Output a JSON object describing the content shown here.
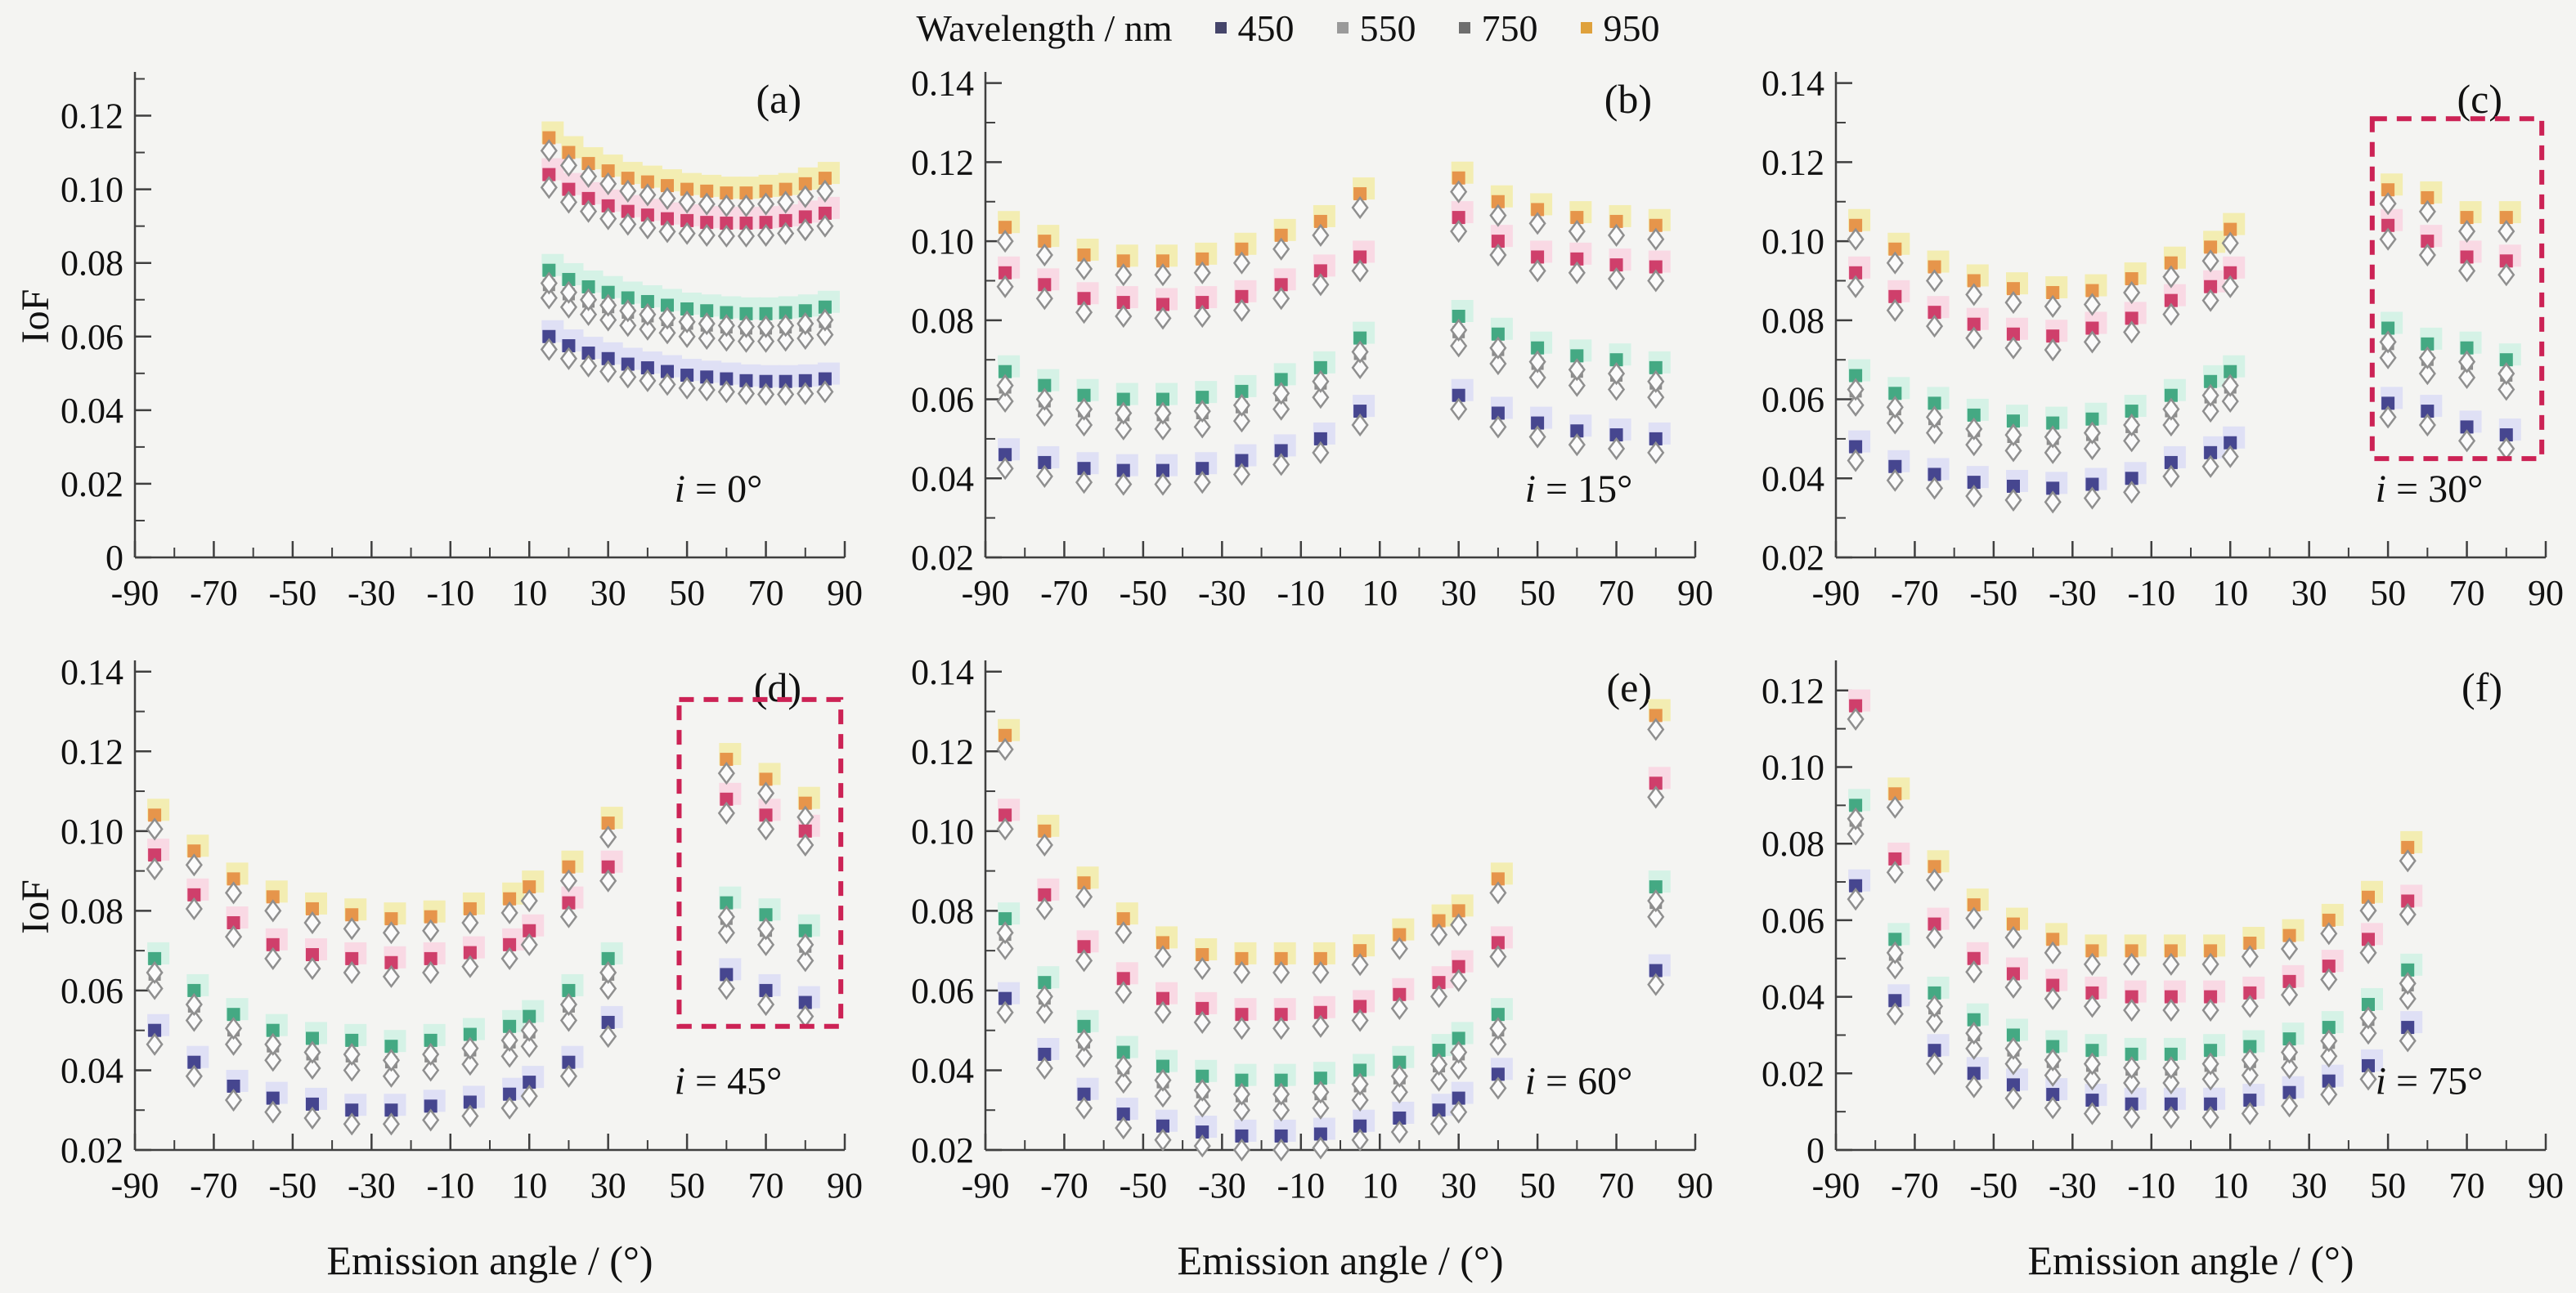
{
  "legend": {
    "title": "Wavelength / nm",
    "items": [
      {
        "label": "450",
        "color": "#45456a"
      },
      {
        "label": "550",
        "color": "#9a9a9a"
      },
      {
        "label": "750",
        "color": "#6e6e6e"
      },
      {
        "label": "950",
        "color": "#dfa13c"
      }
    ]
  },
  "styles": {
    "series": {
      "450": {
        "square": "#46468f",
        "halo": "#dfe0f5"
      },
      "550": {
        "square": "#44a983",
        "halo": "#d5f2e6"
      },
      "750": {
        "square": "#cf3f6b",
        "halo": "#f9d9e4"
      },
      "950": {
        "square": "#e6954b",
        "halo": "#f3edb2"
      }
    },
    "gray_square": "#8c8c8c",
    "diamond": {
      "fill": "#fbfbfb",
      "stroke": "#8f8f8f"
    },
    "box_color": "#cc2255",
    "axis_color": "#3f3f3f",
    "derived": {
      "gray_from": "550",
      "gray_offset": -0.004,
      "diamond_offset": -0.0035
    }
  },
  "chart_data": {
    "type": "scatter",
    "xlabel": "Emission angle / (°)",
    "ylabel": "IoF",
    "wavelengths_nm": [
      450,
      550,
      750,
      950
    ],
    "incidence_angles_deg": [
      0,
      15,
      30,
      45,
      60,
      75
    ],
    "markers": {
      "square": "filled square colored by wavelength",
      "diamond": "open gray-outlined diamond plotted slightly below each square",
      "gray_square": "unlabeled gray square series just below the 550 nm series",
      "halo": "pale tinted square behind each data point"
    },
    "xlim": [
      -90,
      90
    ],
    "xticks": [
      -90,
      -70,
      -50,
      -30,
      -10,
      10,
      30,
      50,
      70,
      90
    ],
    "xtick_labels": [
      "-90",
      "-70",
      "-50",
      "-30",
      "-10",
      "10",
      "30",
      "50",
      "70",
      "90"
    ],
    "panels": [
      {
        "id": "a",
        "label": "(a)",
        "annotation": {
          "symbol": "i",
          "rest": " = 0°"
        },
        "show_ylabel": true,
        "show_xlabel": false,
        "ylim": [
          0,
          0.131
        ],
        "yticks": [
          0,
          0.02,
          0.04,
          0.06,
          0.08,
          0.1,
          0.12
        ],
        "ytick_labels": [
          "0",
          "0.02",
          "0.04",
          "0.06",
          "0.08",
          "0.10",
          "0.12"
        ],
        "x": [
          15,
          20,
          25,
          30,
          35,
          40,
          45,
          50,
          55,
          60,
          65,
          70,
          75,
          80,
          85
        ],
        "series": {
          "950": [
            0.114,
            0.11,
            0.107,
            0.105,
            0.103,
            0.102,
            0.101,
            0.1,
            0.0995,
            0.099,
            0.099,
            0.0995,
            0.1,
            0.1015,
            0.103
          ],
          "750": [
            0.104,
            0.1,
            0.0975,
            0.0955,
            0.094,
            0.093,
            0.092,
            0.0915,
            0.091,
            0.0908,
            0.0908,
            0.091,
            0.0915,
            0.0925,
            0.0935
          ],
          "550": [
            0.078,
            0.0755,
            0.0735,
            0.072,
            0.0705,
            0.0695,
            0.0685,
            0.0675,
            0.067,
            0.0665,
            0.0662,
            0.0662,
            0.0665,
            0.067,
            0.068
          ],
          "450": [
            0.06,
            0.0575,
            0.0555,
            0.054,
            0.0525,
            0.0515,
            0.0505,
            0.0495,
            0.049,
            0.0485,
            0.048,
            0.0478,
            0.0478,
            0.048,
            0.0485
          ]
        },
        "box": null
      },
      {
        "id": "b",
        "label": "(b)",
        "annotation": {
          "symbol": "i",
          "rest": " = 15°"
        },
        "show_ylabel": false,
        "show_xlabel": false,
        "ylim": [
          0.02,
          0.142
        ],
        "yticks": [
          0.02,
          0.04,
          0.06,
          0.08,
          0.1,
          0.12,
          0.14
        ],
        "ytick_labels": [
          "0.02",
          "0.04",
          "0.06",
          "0.08",
          "0.10",
          "0.12",
          "0.14"
        ],
        "x": [
          -85,
          -75,
          -65,
          -55,
          -45,
          -35,
          -25,
          -15,
          -5,
          5,
          30,
          40,
          50,
          60,
          70,
          80
        ],
        "series": {
          "950": [
            0.1035,
            0.1,
            0.0965,
            0.095,
            0.095,
            0.0955,
            0.098,
            0.1015,
            0.105,
            0.112,
            0.116,
            0.11,
            0.108,
            0.106,
            0.105,
            0.104
          ],
          "750": [
            0.092,
            0.089,
            0.0855,
            0.0845,
            0.084,
            0.0845,
            0.086,
            0.089,
            0.0925,
            0.096,
            0.106,
            0.1,
            0.096,
            0.0955,
            0.094,
            0.0935
          ],
          "550": [
            0.067,
            0.0635,
            0.061,
            0.06,
            0.06,
            0.0605,
            0.062,
            0.065,
            0.068,
            0.0755,
            0.081,
            0.0765,
            0.073,
            0.071,
            0.07,
            0.068
          ],
          "450": [
            0.046,
            0.044,
            0.0425,
            0.042,
            0.042,
            0.0425,
            0.0445,
            0.047,
            0.05,
            0.057,
            0.061,
            0.0565,
            0.054,
            0.052,
            0.051,
            0.05
          ]
        },
        "box": null
      },
      {
        "id": "c",
        "label": "(c)",
        "annotation": {
          "symbol": "i",
          "rest": " = 30°"
        },
        "show_ylabel": false,
        "show_xlabel": false,
        "ylim": [
          0.02,
          0.142
        ],
        "yticks": [
          0.02,
          0.04,
          0.06,
          0.08,
          0.1,
          0.12,
          0.14
        ],
        "ytick_labels": [
          "0.02",
          "0.04",
          "0.06",
          "0.08",
          "0.10",
          "0.12",
          "0.14"
        ],
        "x": [
          -85,
          -75,
          -65,
          -55,
          -45,
          -35,
          -25,
          -15,
          -5,
          5,
          10,
          50,
          60,
          70,
          80
        ],
        "series": {
          "950": [
            0.104,
            0.098,
            0.0935,
            0.09,
            0.088,
            0.087,
            0.0875,
            0.0905,
            0.0945,
            0.0985,
            0.103,
            0.113,
            0.111,
            0.106,
            0.106
          ],
          "750": [
            0.092,
            0.086,
            0.082,
            0.079,
            0.0765,
            0.076,
            0.078,
            0.0805,
            0.085,
            0.0885,
            0.092,
            0.104,
            0.1,
            0.096,
            0.095
          ],
          "550": [
            0.066,
            0.0615,
            0.059,
            0.056,
            0.0545,
            0.054,
            0.055,
            0.057,
            0.061,
            0.0645,
            0.067,
            0.078,
            0.074,
            0.073,
            0.07
          ],
          "450": [
            0.048,
            0.043,
            0.041,
            0.039,
            0.038,
            0.0375,
            0.0385,
            0.04,
            0.044,
            0.0465,
            0.049,
            0.059,
            0.057,
            0.053,
            0.051
          ]
        },
        "box": {
          "x": [
            46,
            89
          ],
          "y": [
            0.045,
            0.131
          ]
        }
      },
      {
        "id": "d",
        "label": "(d)",
        "annotation": {
          "symbol": "i",
          "rest": " = 45°"
        },
        "show_ylabel": true,
        "show_xlabel": true,
        "ylim": [
          0.02,
          0.142
        ],
        "yticks": [
          0.02,
          0.04,
          0.06,
          0.08,
          0.1,
          0.12,
          0.14
        ],
        "ytick_labels": [
          "0.02",
          "0.04",
          "0.06",
          "0.08",
          "0.10",
          "0.12",
          "0.14"
        ],
        "x": [
          -85,
          -75,
          -65,
          -55,
          -45,
          -35,
          -25,
          -15,
          -5,
          5,
          10,
          20,
          30,
          60,
          70,
          80
        ],
        "series": {
          "950": [
            0.104,
            0.095,
            0.088,
            0.0835,
            0.0805,
            0.079,
            0.078,
            0.0785,
            0.0805,
            0.083,
            0.086,
            0.091,
            0.102,
            0.118,
            0.113,
            0.107
          ],
          "750": [
            0.094,
            0.084,
            0.077,
            0.0715,
            0.069,
            0.068,
            0.067,
            0.068,
            0.0695,
            0.0715,
            0.075,
            0.082,
            0.091,
            0.108,
            0.104,
            0.1
          ],
          "550": [
            0.068,
            0.06,
            0.054,
            0.05,
            0.048,
            0.0475,
            0.046,
            0.0475,
            0.049,
            0.051,
            0.0535,
            0.06,
            0.068,
            0.082,
            0.079,
            0.075
          ],
          "450": [
            0.05,
            0.042,
            0.036,
            0.033,
            0.0315,
            0.03,
            0.03,
            0.031,
            0.032,
            0.034,
            0.037,
            0.042,
            0.052,
            0.064,
            0.06,
            0.057
          ]
        },
        "box": {
          "x": [
            48,
            89
          ],
          "y": [
            0.051,
            0.133
          ]
        }
      },
      {
        "id": "e",
        "label": "(e)",
        "annotation": {
          "symbol": "i",
          "rest": " = 60°"
        },
        "show_ylabel": false,
        "show_xlabel": true,
        "ylim": [
          0.02,
          0.142
        ],
        "yticks": [
          0.02,
          0.04,
          0.06,
          0.08,
          0.1,
          0.12,
          0.14
        ],
        "ytick_labels": [
          "0.02",
          "0.04",
          "0.06",
          "0.08",
          "0.10",
          "0.12",
          "0.14"
        ],
        "x": [
          -85,
          -75,
          -65,
          -55,
          -45,
          -35,
          -25,
          -15,
          -5,
          5,
          15,
          25,
          30,
          40,
          80
        ],
        "series": {
          "950": [
            0.124,
            0.1,
            0.087,
            0.078,
            0.072,
            0.069,
            0.068,
            0.068,
            0.068,
            0.07,
            0.074,
            0.0775,
            0.08,
            0.088,
            0.129
          ],
          "750": [
            0.104,
            0.084,
            0.071,
            0.063,
            0.058,
            0.0555,
            0.054,
            0.054,
            0.0545,
            0.056,
            0.059,
            0.062,
            0.066,
            0.072,
            0.112
          ],
          "550": [
            0.078,
            0.062,
            0.051,
            0.0445,
            0.041,
            0.0385,
            0.0375,
            0.0375,
            0.038,
            0.04,
            0.042,
            0.045,
            0.048,
            0.054,
            0.086
          ],
          "450": [
            0.058,
            0.044,
            0.034,
            0.029,
            0.026,
            0.0245,
            0.0235,
            0.0235,
            0.024,
            0.026,
            0.028,
            0.03,
            0.033,
            0.039,
            0.065
          ]
        },
        "box": null
      },
      {
        "id": "f",
        "label": "(f)",
        "annotation": {
          "symbol": "i",
          "rest": " = 75°"
        },
        "show_ylabel": false,
        "show_xlabel": true,
        "ylim": [
          0,
          0.127
        ],
        "yticks": [
          0,
          0.02,
          0.04,
          0.06,
          0.08,
          0.1,
          0.12
        ],
        "ytick_labels": [
          "0",
          "0.02",
          "0.04",
          "0.06",
          "0.08",
          "0.10",
          "0.12"
        ],
        "x": [
          -85,
          -75,
          -65,
          -55,
          -45,
          -35,
          -25,
          -15,
          -5,
          5,
          15,
          25,
          35,
          45,
          55
        ],
        "series": {
          "950": [
            null,
            0.093,
            0.074,
            0.064,
            0.059,
            0.055,
            0.052,
            0.052,
            0.052,
            0.052,
            0.054,
            0.056,
            0.06,
            0.066,
            0.079
          ],
          "750": [
            0.116,
            0.076,
            0.059,
            0.05,
            0.046,
            0.043,
            0.041,
            0.04,
            0.04,
            0.04,
            0.041,
            0.044,
            0.048,
            0.055,
            0.065
          ],
          "550": [
            0.09,
            0.055,
            0.041,
            0.034,
            0.03,
            0.027,
            0.026,
            0.025,
            0.025,
            0.026,
            0.027,
            0.029,
            0.032,
            0.038,
            0.047
          ],
          "450": [
            0.069,
            0.039,
            0.026,
            0.02,
            0.017,
            0.0145,
            0.013,
            0.012,
            0.012,
            0.012,
            0.013,
            0.015,
            0.018,
            0.022,
            0.032
          ]
        },
        "box": null
      }
    ]
  }
}
